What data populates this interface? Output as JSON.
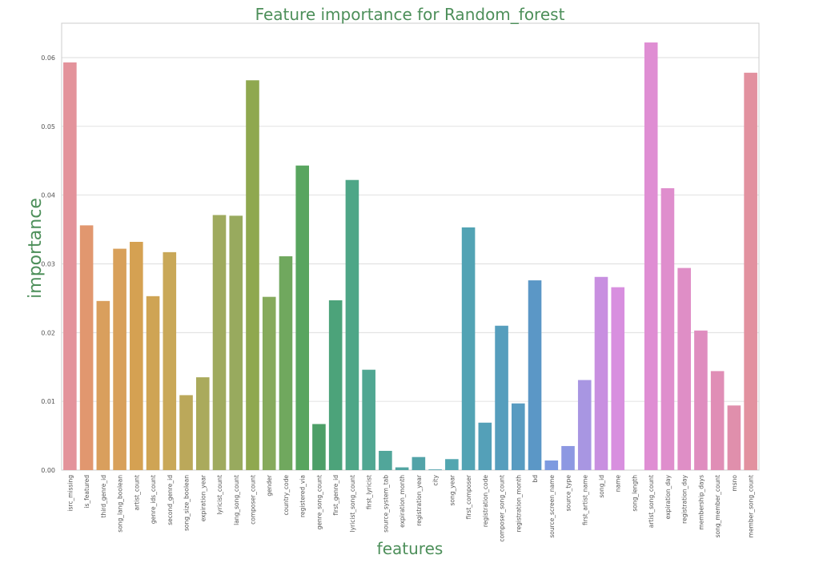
{
  "colors": {
    "title": "#4d8f5a",
    "axis_label": "#4d8f5a",
    "tick_label": "#555555",
    "grid": "#d9d9d9",
    "frame": "#cccccc"
  },
  "chart_data": {
    "type": "bar",
    "title": "Feature importance for Random_forest",
    "xlabel": "features",
    "ylabel": "importance",
    "ylim": [
      0,
      0.065
    ],
    "yticks": [
      "0.00",
      "0.01",
      "0.02",
      "0.03",
      "0.04",
      "0.05",
      "0.06"
    ],
    "grid": true,
    "legend": "none",
    "categories": [
      "isrc_missing",
      "is_featured",
      "third_genre_id",
      "song_lang_boolean",
      "artist_count",
      "genre_ids_count",
      "second_genre_id",
      "song_size_boolean",
      "expiration_year",
      "lyricist_count",
      "lang_song_count",
      "composer_count",
      "gender",
      "country_code",
      "registered_via",
      "genre_song_count",
      "first_genre_id",
      "lyricist_song_count",
      "first_lyricist",
      "source_system_tab",
      "expiration_month",
      "registration_year",
      "city",
      "song_year",
      "first_composer",
      "registration_code",
      "composer_song_count",
      "registration_month",
      "bd",
      "source_screen_name",
      "source_type",
      "first_artist_name",
      "song_id",
      "name",
      "song_length",
      "artist_song_count",
      "expiration_day",
      "registration_day",
      "membership_days",
      "song_member_count",
      "msno",
      "member_song_count"
    ],
    "values": [
      0.0593,
      0.0356,
      0.0246,
      0.0322,
      0.0332,
      0.0253,
      0.0317,
      0.0109,
      0.0135,
      0.0371,
      0.037,
      0.0567,
      0.0252,
      0.0311,
      0.0443,
      0.0067,
      0.0247,
      0.0422,
      0.0146,
      0.0028,
      0.0004,
      0.0019,
      0.0001,
      0.0016,
      0.0353,
      0.0069,
      0.021,
      0.0097,
      0.0276,
      0.0014,
      0.0035,
      0.0131,
      0.0281,
      0.0266,
      0.0,
      0.0622,
      0.041,
      0.0294,
      0.0203,
      0.0144,
      0.0094,
      0.0578
    ],
    "bar_colors": [
      "#e3939b",
      "#e1976f",
      "#d99f5d",
      "#d8a05a",
      "#d5a152",
      "#cfa454",
      "#c9a858",
      "#bba85a",
      "#aaaa5c",
      "#9faa5e",
      "#98aa5e",
      "#8fa84f",
      "#86aa5c",
      "#70a85e",
      "#58a55f",
      "#4d9f67",
      "#4ca37a",
      "#4ea687",
      "#50a792",
      "#51a69a",
      "#52a5a2",
      "#52a3a8",
      "#53a1ad",
      "#52a6b0",
      "#52a3b4",
      "#54a0b8",
      "#569ebd",
      "#589bc1",
      "#5b97c6",
      "#7d9ae0",
      "#8d98e2",
      "#a896e2",
      "#c88fe0",
      "#d88fdf",
      "#dd8fd8",
      "#df8ed3",
      "#df8ecd",
      "#df8ec6",
      "#df8dbf",
      "#e08eb6",
      "#e08fac",
      "#e2919f"
    ]
  }
}
